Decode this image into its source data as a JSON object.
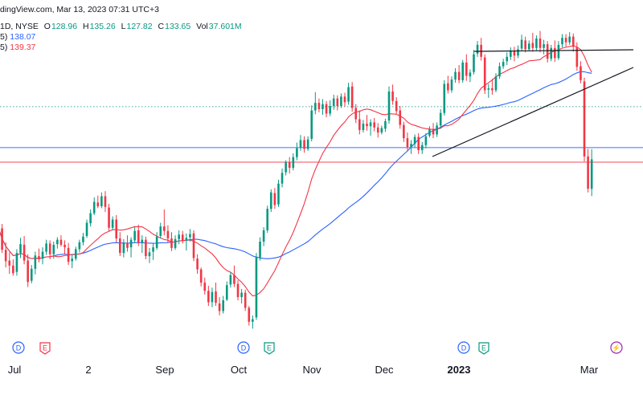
{
  "header": {
    "source_line": "dingView.com, Mar 13, 2023 07:31 UTC+3",
    "symbol_line": "1D, NYSE",
    "o_label": "O",
    "o": "128.96",
    "h_label": "H",
    "h": "135.26",
    "l_label": "L",
    "l": "127.82",
    "c_label": "C",
    "c": "133.65",
    "vol_label": "Vol",
    "vol": "37.601M",
    "ma1_prefix": "5)",
    "ma1_value": "138.07",
    "ma2_prefix": "5)",
    "ma2_value": "139.37"
  },
  "colors": {
    "up": "#089981",
    "down": "#f23645",
    "ma_blue": "#2962ff",
    "ma_red": "#f23645",
    "trendline": "#131722",
    "hline_green": "#089981",
    "hline_blue": "#2962ff",
    "hline_red": "#f23645",
    "axis_text": "#131722"
  },
  "chart_data": {
    "type": "candlestick",
    "x_labels": [
      "Jul",
      "2",
      "Sep",
      "Oct",
      "Nov",
      "Dec",
      "2023",
      "Mar"
    ],
    "events": [
      {
        "type": "D",
        "near": "Jul"
      },
      {
        "type": "E",
        "near": "Jul"
      },
      {
        "type": "D",
        "near": "Oct"
      },
      {
        "type": "E",
        "near": "Oct"
      },
      {
        "type": "D",
        "near": "2023"
      },
      {
        "type": "E",
        "near": "2023"
      },
      {
        "type": "split",
        "near": "Mar"
      }
    ],
    "ma_values": [
      138.07,
      139.37
    ],
    "horizontal_levels": [
      {
        "style": "dotted",
        "color": "green",
        "value": 142.0
      },
      {
        "style": "solid",
        "color": "blue",
        "value": 135.5
      },
      {
        "style": "solid",
        "color": "red",
        "value": 133.2
      }
    ],
    "candles": [
      [
        124.4,
        125.5,
        121.1,
        122.8
      ],
      [
        122.7,
        123.4,
        118.8,
        119.3
      ],
      [
        119.3,
        120.5,
        116.5,
        117.5
      ],
      [
        117.6,
        118.9,
        115.5,
        116.8
      ],
      [
        116.8,
        117.8,
        115.2,
        115.6
      ],
      [
        115.8,
        119.4,
        115.2,
        118.8
      ],
      [
        118.8,
        121.2,
        118.0,
        120.2
      ],
      [
        120.1,
        121.5,
        117.0,
        117.6
      ],
      [
        117.6,
        118.6,
        113.4,
        114.2
      ],
      [
        114.4,
        116.9,
        114.0,
        116.3
      ],
      [
        116.3,
        119.0,
        115.4,
        118.4
      ],
      [
        118.3,
        119.5,
        117.3,
        117.8
      ],
      [
        117.9,
        119.7,
        117.0,
        119.0
      ],
      [
        119.0,
        120.9,
        118.5,
        120.3
      ],
      [
        120.3,
        120.8,
        117.8,
        118.6
      ],
      [
        118.6,
        120.6,
        117.9,
        120.1
      ],
      [
        120.2,
        121.3,
        119.5,
        120.9
      ],
      [
        120.9,
        121.6,
        119.8,
        120.1
      ],
      [
        120.1,
        120.8,
        118.6,
        119.7
      ],
      [
        119.6,
        120.4,
        116.9,
        117.4
      ],
      [
        117.5,
        118.6,
        116.4,
        117.9
      ],
      [
        117.9,
        119.8,
        117.6,
        119.4
      ],
      [
        119.4,
        120.9,
        118.9,
        120.5
      ],
      [
        120.5,
        122.0,
        120.0,
        121.4
      ],
      [
        121.5,
        124.1,
        121.2,
        123.6
      ],
      [
        123.5,
        125.7,
        123.0,
        125.1
      ],
      [
        125.1,
        127.6,
        124.8,
        126.9
      ],
      [
        126.8,
        127.9,
        125.9,
        126.2
      ],
      [
        126.2,
        128.4,
        125.9,
        127.8
      ],
      [
        127.8,
        128.6,
        125.3,
        126.1
      ],
      [
        126.0,
        126.6,
        122.2,
        122.8
      ],
      [
        122.8,
        124.6,
        122.4,
        124.1
      ],
      [
        124.1,
        124.8,
        120.5,
        121.1
      ],
      [
        121.1,
        122.1,
        118.3,
        118.8
      ],
      [
        118.8,
        121.0,
        118.1,
        120.4
      ],
      [
        120.4,
        121.6,
        119.0,
        119.6
      ],
      [
        119.7,
        121.3,
        118.1,
        120.9
      ],
      [
        120.8,
        122.9,
        120.4,
        122.3
      ],
      [
        122.4,
        123.3,
        119.9,
        120.4
      ],
      [
        120.4,
        121.6,
        118.8,
        120.9
      ],
      [
        120.9,
        121.4,
        117.8,
        118.3
      ],
      [
        118.3,
        119.6,
        117.2,
        118.9
      ],
      [
        119.0,
        120.3,
        117.7,
        119.7
      ],
      [
        119.6,
        122.1,
        119.3,
        121.4
      ],
      [
        121.5,
        123.6,
        121.1,
        123.0
      ],
      [
        123.0,
        125.7,
        121.6,
        122.3
      ],
      [
        122.3,
        123.2,
        120.4,
        121.1
      ],
      [
        121.1,
        122.1,
        119.1,
        119.6
      ],
      [
        119.6,
        121.6,
        119.3,
        121.0
      ],
      [
        121.0,
        122.4,
        120.2,
        121.7
      ],
      [
        121.7,
        122.3,
        120.3,
        120.8
      ],
      [
        120.8,
        121.9,
        119.2,
        121.2
      ],
      [
        121.3,
        122.6,
        120.6,
        121.8
      ],
      [
        121.9,
        122.4,
        117.5,
        118.0
      ],
      [
        117.9,
        118.6,
        115.5,
        116.2
      ],
      [
        116.2,
        116.5,
        113.5,
        114.1
      ],
      [
        114.1,
        114.9,
        112.2,
        112.8
      ],
      [
        112.8,
        113.6,
        110.4,
        111.0
      ],
      [
        111.0,
        113.3,
        110.2,
        112.6
      ],
      [
        112.7,
        114.1,
        110.4,
        110.9
      ],
      [
        110.8,
        111.8,
        108.9,
        109.6
      ],
      [
        109.6,
        112.0,
        109.2,
        111.3
      ],
      [
        111.4,
        114.3,
        111.2,
        113.7
      ],
      [
        113.8,
        115.8,
        113.3,
        115.3
      ],
      [
        115.3,
        116.8,
        113.4,
        113.9
      ],
      [
        113.9,
        114.5,
        111.3,
        111.8
      ],
      [
        111.8,
        113.1,
        110.8,
        112.5
      ],
      [
        112.5,
        113.0,
        109.6,
        110.1
      ],
      [
        110.1,
        110.4,
        107.3,
        107.9
      ],
      [
        107.9,
        108.9,
        106.8,
        108.3
      ],
      [
        108.6,
        118.8,
        108.2,
        118.1
      ],
      [
        118.1,
        121.3,
        117.6,
        120.6
      ],
      [
        120.6,
        122.9,
        119.9,
        122.4
      ],
      [
        122.4,
        126.3,
        122.0,
        125.8
      ],
      [
        125.8,
        128.9,
        125.3,
        128.4
      ],
      [
        128.3,
        129.1,
        125.8,
        126.4
      ],
      [
        126.5,
        130.4,
        126.1,
        129.8
      ],
      [
        129.8,
        132.2,
        129.2,
        131.5
      ],
      [
        131.6,
        133.5,
        131.1,
        133.2
      ],
      [
        133.2,
        134.0,
        131.4,
        132.3
      ],
      [
        132.3,
        134.6,
        131.9,
        134.0
      ],
      [
        134.0,
        136.3,
        133.5,
        135.4
      ],
      [
        135.5,
        137.5,
        135.0,
        136.7
      ],
      [
        136.7,
        137.3,
        134.7,
        135.3
      ],
      [
        135.3,
        137.3,
        135.0,
        136.8
      ],
      [
        136.9,
        142.2,
        136.5,
        141.4
      ],
      [
        141.4,
        144.3,
        140.8,
        142.6
      ],
      [
        142.6,
        143.3,
        141.1,
        141.6
      ],
      [
        141.6,
        143.2,
        140.7,
        142.4
      ],
      [
        142.4,
        142.9,
        140.3,
        140.9
      ],
      [
        140.9,
        143.0,
        140.5,
        142.1
      ],
      [
        142.1,
        143.9,
        141.5,
        143.3
      ],
      [
        143.3,
        143.8,
        141.4,
        142.1
      ],
      [
        142.1,
        144.1,
        141.8,
        143.6
      ],
      [
        143.6,
        144.2,
        142.0,
        142.7
      ],
      [
        142.8,
        145.8,
        142.3,
        145.1
      ],
      [
        145.2,
        145.9,
        141.2,
        141.8
      ],
      [
        141.8,
        142.4,
        139.4,
        140.0
      ],
      [
        140.0,
        141.4,
        137.6,
        138.3
      ],
      [
        138.3,
        139.9,
        137.9,
        139.3
      ],
      [
        139.3,
        140.7,
        138.2,
        138.9
      ],
      [
        138.9,
        140.0,
        137.4,
        139.5
      ],
      [
        139.5,
        140.2,
        138.1,
        138.7
      ],
      [
        138.7,
        139.4,
        137.1,
        137.9
      ],
      [
        137.9,
        139.0,
        137.6,
        138.6
      ],
      [
        138.5,
        140.1,
        138.0,
        139.7
      ],
      [
        139.8,
        145.2,
        139.3,
        144.4
      ],
      [
        144.4,
        145.5,
        142.3,
        142.9
      ],
      [
        142.9,
        143.5,
        140.8,
        141.3
      ],
      [
        141.4,
        142.1,
        138.5,
        139.1
      ],
      [
        139.1,
        139.6,
        136.4,
        137.0
      ],
      [
        137.0,
        137.9,
        134.9,
        135.6
      ],
      [
        135.6,
        136.7,
        134.5,
        136.1
      ],
      [
        136.1,
        137.6,
        135.5,
        137.2
      ],
      [
        137.2,
        137.8,
        134.5,
        135.1
      ],
      [
        135.1,
        136.4,
        134.5,
        135.9
      ],
      [
        135.9,
        137.8,
        135.4,
        137.3
      ],
      [
        137.4,
        138.9,
        137.1,
        138.4
      ],
      [
        138.4,
        139.4,
        137.0,
        137.6
      ],
      [
        137.6,
        139.5,
        137.2,
        139.0
      ],
      [
        139.0,
        141.6,
        138.5,
        141.0
      ],
      [
        141.0,
        146.2,
        140.6,
        145.6
      ],
      [
        145.7,
        146.9,
        144.1,
        144.6
      ],
      [
        144.6,
        146.8,
        144.2,
        146.3
      ],
      [
        146.3,
        148.1,
        145.8,
        147.5
      ],
      [
        147.5,
        148.6,
        145.7,
        146.2
      ],
      [
        146.2,
        149.4,
        145.8,
        149.0
      ],
      [
        149.0,
        150.3,
        146.1,
        146.9
      ],
      [
        146.8,
        147.9,
        145.9,
        147.4
      ],
      [
        147.5,
        151.0,
        147.1,
        150.3
      ],
      [
        150.4,
        152.4,
        149.9,
        151.8
      ],
      [
        151.8,
        152.9,
        149.3,
        149.9
      ],
      [
        149.8,
        150.3,
        144.0,
        144.6
      ],
      [
        144.7,
        145.6,
        143.4,
        144.9
      ],
      [
        144.9,
        146.4,
        143.9,
        144.6
      ],
      [
        144.6,
        147.3,
        144.3,
        146.8
      ],
      [
        146.8,
        149.0,
        146.4,
        148.4
      ],
      [
        148.4,
        149.6,
        148.0,
        149.1
      ],
      [
        149.2,
        150.6,
        148.6,
        149.9
      ],
      [
        149.9,
        151.4,
        149.4,
        150.9
      ],
      [
        150.9,
        151.5,
        149.2,
        150.1
      ],
      [
        150.1,
        151.7,
        149.7,
        151.1
      ],
      [
        151.2,
        153.4,
        150.8,
        152.6
      ],
      [
        152.5,
        153.1,
        150.6,
        151.1
      ],
      [
        151.1,
        152.5,
        150.8,
        152.0
      ],
      [
        152.1,
        153.7,
        150.7,
        151.3
      ],
      [
        151.3,
        153.3,
        150.9,
        152.8
      ],
      [
        152.8,
        154.0,
        150.6,
        151.3
      ],
      [
        151.3,
        152.6,
        150.3,
        151.9
      ],
      [
        151.9,
        152.4,
        149.0,
        149.6
      ],
      [
        149.6,
        151.8,
        149.2,
        151.3
      ],
      [
        151.3,
        152.5,
        149.1,
        149.7
      ],
      [
        149.7,
        152.4,
        149.4,
        151.8
      ],
      [
        151.9,
        153.5,
        151.4,
        152.9
      ],
      [
        152.9,
        153.5,
        151.5,
        152.2
      ],
      [
        152.2,
        153.8,
        151.8,
        153.1
      ],
      [
        153.1,
        153.6,
        150.7,
        151.5
      ],
      [
        151.4,
        152.2,
        147.7,
        148.3
      ],
      [
        148.4,
        149.2,
        145.7,
        146.2
      ],
      [
        146.0,
        146.6,
        133.3,
        134.1
      ],
      [
        134.1,
        135.3,
        128.4,
        129.0
      ],
      [
        128.96,
        135.26,
        127.82,
        133.65
      ]
    ]
  }
}
